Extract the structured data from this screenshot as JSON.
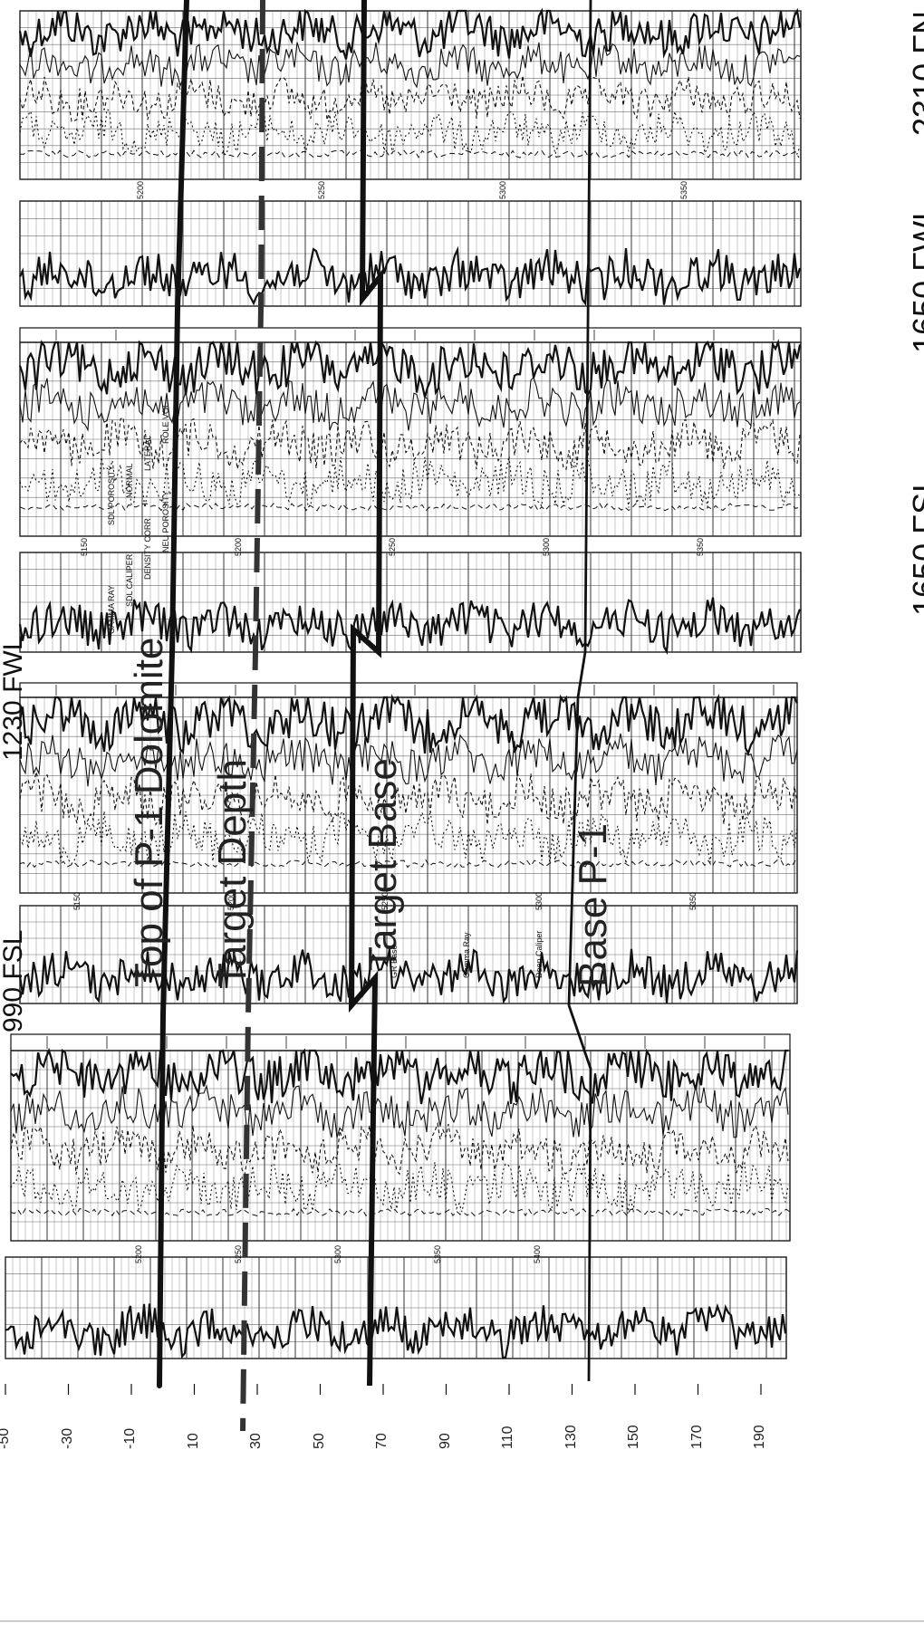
{
  "header": {
    "loc_top": "2310 FN",
    "loc_2": "1650 FWL",
    "loc_3": "1650 FSL",
    "loc_4": "1230 FWL",
    "loc_5": "990 FSL"
  },
  "labels": {
    "top_p1": "Top of P-1 Dolomite",
    "target_depth": "Target Depth",
    "target_base": "Target Base",
    "base_p1": "Base P-1"
  },
  "scale": {
    "ticks": [
      "-50",
      "-30",
      "-10",
      "10",
      "30",
      "50",
      "70",
      "90",
      "110",
      "130",
      "150",
      "170",
      "190"
    ]
  },
  "track_labels": {
    "log1_depths": [
      "5200",
      "5250",
      "5300",
      "5350",
      "5400"
    ],
    "log2_depths": [
      "5150",
      "5200",
      "5250",
      "5300",
      "5350"
    ],
    "log2_gr_labels": [
      "GR Base",
      "Gamma Ray",
      "Deep Caliper"
    ],
    "log3_depths": [
      "5150",
      "5200",
      "5250",
      "5300",
      "5350"
    ],
    "log3_curve_labels": [
      "GAMMA RAY",
      "SDL CALIPER",
      "DENSITY CORR",
      "NEU POROSITY",
      "SDL POROSITY",
      "NORMAL",
      "LATERAL",
      "ROLE VOL"
    ],
    "log4_depths": [
      "5200",
      "5250",
      "5300",
      "5350"
    ]
  },
  "colors": {
    "ink": "#111111",
    "grid": "#333333",
    "paper": "#ffffff"
  }
}
